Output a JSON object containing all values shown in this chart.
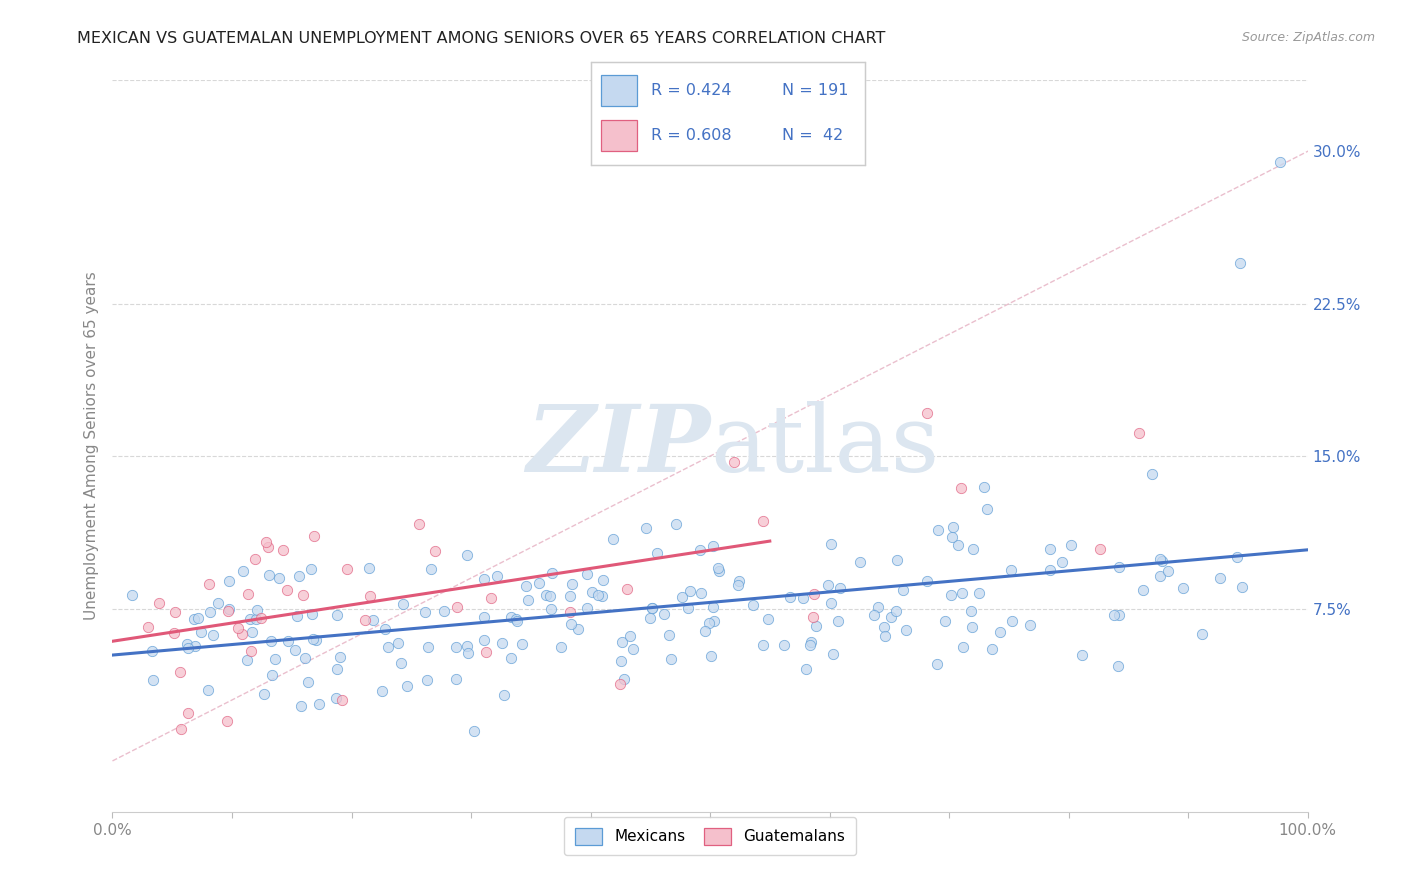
{
  "title": "MEXICAN VS GUATEMALAN UNEMPLOYMENT AMONG SENIORS OVER 65 YEARS CORRELATION CHART",
  "source": "Source: ZipAtlas.com",
  "ylabel": "Unemployment Among Seniors over 65 years",
  "xlim": [
    0.0,
    1.0
  ],
  "ylim": [
    -0.025,
    0.335
  ],
  "xticks": [
    0.0,
    0.1,
    0.2,
    0.3,
    0.4,
    0.5,
    0.6,
    0.7,
    0.8,
    0.9,
    1.0
  ],
  "xticklabels": [
    "0.0%",
    "",
    "",
    "",
    "",
    "",
    "",
    "",
    "",
    "",
    "100.0%"
  ],
  "yticks": [
    0.0,
    0.075,
    0.15,
    0.225,
    0.3
  ],
  "yticklabels": [
    "",
    "7.5%",
    "15.0%",
    "22.5%",
    "30.0%"
  ],
  "mexican_fill": "#c5d9f0",
  "mexican_edge": "#5b9bd5",
  "guatemalan_fill": "#f5c0cc",
  "guatemalan_edge": "#e06080",
  "mexican_line": "#4472c4",
  "guatemalan_line": "#e05878",
  "diagonal_color": "#e8b8c8",
  "watermark_color": "#dce6f0",
  "r_mexican": 0.424,
  "n_mexican": 191,
  "r_guatemalan": 0.608,
  "n_guatemalan": 42,
  "bg": "#ffffff",
  "grid_color": "#d8d8d8",
  "tick_color": "#888888",
  "title_color": "#222222",
  "source_color": "#999999",
  "legend_text_color": "#4472c4",
  "right_tick_color": "#4472c4"
}
